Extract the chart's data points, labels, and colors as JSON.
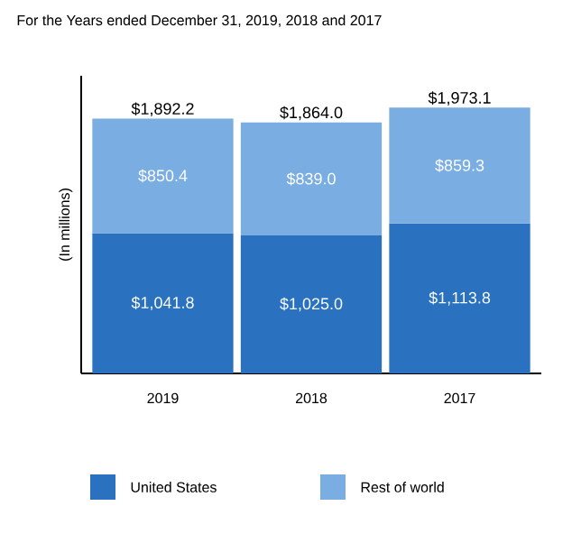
{
  "chart_data": {
    "type": "bar",
    "stacked": true,
    "title": "For the Years ended December 31, 2019, 2018 and 2017",
    "ylabel": "(In millions)",
    "categories": [
      "2019",
      "2018",
      "2017"
    ],
    "series": [
      {
        "name": "United States",
        "color": "#2a72c0",
        "values": [
          1041.8,
          1025.0,
          1113.8
        ],
        "value_labels": [
          "$1,041.8",
          "$1,025.0",
          "$1,113.8"
        ]
      },
      {
        "name": "Rest of world",
        "color": "#7aaee3",
        "values": [
          850.4,
          839.0,
          859.3
        ],
        "value_labels": [
          "$850.4",
          "$839.0",
          "$859.3"
        ]
      }
    ],
    "totals": [
      "$1,892.2",
      "$1,864.0",
      "$1,973.1"
    ],
    "legend": "bottom",
    "tick_labels": "x"
  }
}
